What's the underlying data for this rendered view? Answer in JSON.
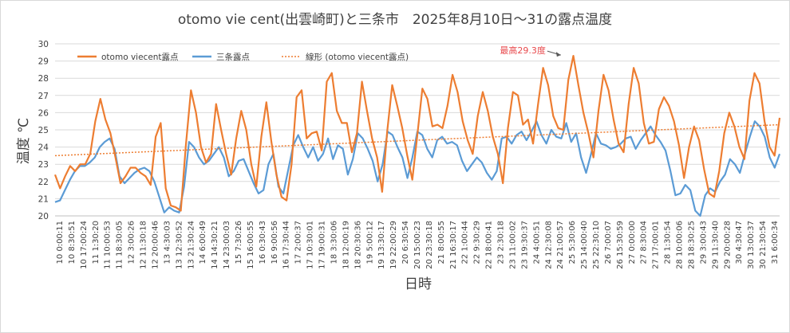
{
  "chart_data": {
    "type": "line",
    "title": "otomo vie cent(出雲崎町)と三条市　2025年8月10日～31の露点温度",
    "xlabel": "日時",
    "ylabel": "温度 ℃",
    "ylim": [
      20,
      30
    ],
    "yticks": [
      20,
      21,
      22,
      23,
      24,
      25,
      26,
      27,
      28,
      29,
      30
    ],
    "grid": true,
    "legend_position": "top-left",
    "colors": {
      "otomo": "#ed7d31",
      "sanjo": "#5b9bd5",
      "trend": "#ed7d31"
    },
    "x_tick_labels": [
      "10 0:00:11",
      "10 8:30:51",
      "10 17:00:24",
      "11 1:30:20",
      "11 10:00:53",
      "11 18:30:05",
      "12 3:00:26",
      "12 11:30:18",
      "12 20:00:46",
      "13 4:30:03",
      "13 12:30:52",
      "13 21:30:24",
      "14 6:00:49",
      "14 14:30:21",
      "14 23:00:03",
      "15 7:30:26",
      "15 16:00:55",
      "16 0:30:43",
      "16 9:00:56",
      "16 17:30:44",
      "17 2:00:37",
      "17 10:30:01",
      "17 19:00:31",
      "18 3:30:06",
      "18 12:00:19",
      "18 20:30:36",
      "19 5:00:12",
      "19 13:30:17",
      "19 22:00:29",
      "20 6:30:54",
      "20 15:00:23",
      "20 23:30:18",
      "21 8:00:55",
      "21 16:30:17",
      "22 1:00:44",
      "22 9:30:29",
      "22 18:00:41",
      "23 2:30:18",
      "23 11:00:02",
      "23 19:30:37",
      "24 4:00:51",
      "24 12:30:08",
      "24 21:00:57",
      "25 5:30:06",
      "25 14:00:40",
      "25 22:30:10",
      "26 7:00:07",
      "26 15:30:59",
      "27 0:00:00",
      "27 8:30:04",
      "27 17:00:01",
      "28 1:30:54",
      "28 10:00:06",
      "28 18:30:25",
      "29 3:00:43",
      "29 11:30:40",
      "29 20:00:28",
      "30 4:30:47",
      "30 13:00:37",
      "30 21:30:54",
      "31 6:00:34"
    ],
    "series": [
      {
        "name": "otomo viecent露点",
        "values": [
          22.4,
          21.6,
          22.3,
          22.9,
          22.6,
          23.0,
          23.0,
          23.6,
          25.5,
          26.8,
          25.6,
          24.8,
          23.4,
          21.9,
          22.3,
          22.8,
          22.8,
          22.5,
          22.3,
          21.8,
          24.6,
          25.4,
          21.6,
          20.6,
          20.5,
          20.3,
          24.1,
          27.3,
          26.0,
          24.0,
          23.1,
          23.6,
          26.5,
          25.0,
          23.6,
          22.4,
          24.5,
          26.1,
          25.0,
          23.0,
          21.7,
          24.6,
          26.6,
          24.3,
          22.4,
          21.1,
          20.9,
          23.0,
          26.9,
          27.3,
          24.5,
          24.8,
          24.9,
          23.8,
          27.8,
          28.3,
          26.1,
          25.4,
          25.4,
          23.7,
          24.8,
          27.8,
          26.1,
          24.5,
          23.4,
          21.4,
          24.9,
          27.6,
          26.4,
          25.1,
          23.5,
          22.1,
          24.7,
          27.4,
          26.8,
          25.2,
          25.3,
          25.1,
          26.4,
          28.2,
          27.2,
          25.5,
          24.4,
          23.6,
          25.8,
          27.2,
          26.1,
          24.6,
          23.6,
          21.9,
          25.1,
          27.2,
          27.0,
          25.3,
          25.6,
          24.2,
          26.5,
          28.6,
          27.6,
          25.8,
          25.1,
          25.0,
          27.9,
          29.3,
          27.6,
          26.0,
          24.8,
          23.4,
          26.1,
          28.2,
          27.3,
          25.6,
          24.2,
          23.7,
          26.5,
          28.6,
          27.7,
          25.4,
          24.2,
          24.3,
          26.2,
          26.9,
          26.4,
          25.5,
          24.1,
          22.2,
          24.0,
          25.2,
          24.4,
          22.7,
          21.3,
          21.1,
          22.6,
          24.8,
          26.0,
          25.2,
          24.0,
          23.3,
          26.7,
          28.3,
          27.7,
          25.5,
          24.0,
          23.5,
          25.7
        ]
      },
      {
        "name": "三条露点",
        "values": [
          20.8,
          20.9,
          21.5,
          22.1,
          22.6,
          22.9,
          22.9,
          23.1,
          23.4,
          24.0,
          24.3,
          24.5,
          23.9,
          22.3,
          21.9,
          22.2,
          22.5,
          22.7,
          22.8,
          22.6,
          22.0,
          21.1,
          20.2,
          20.5,
          20.3,
          20.2,
          21.7,
          24.3,
          24.0,
          23.4,
          23.0,
          23.2,
          23.6,
          24.0,
          23.4,
          22.3,
          22.6,
          23.2,
          23.3,
          22.6,
          21.9,
          21.3,
          21.5,
          23.0,
          23.6,
          21.7,
          21.3,
          22.7,
          24.1,
          24.7,
          24.0,
          23.4,
          24.0,
          23.2,
          23.6,
          24.5,
          23.3,
          24.1,
          23.9,
          22.4,
          23.3,
          24.8,
          24.5,
          23.9,
          23.2,
          22.0,
          23.0,
          24.9,
          24.7,
          24.0,
          23.4,
          22.2,
          23.4,
          24.9,
          24.7,
          23.9,
          23.4,
          24.4,
          24.6,
          24.2,
          24.3,
          24.1,
          23.2,
          22.6,
          23.0,
          23.4,
          23.1,
          22.5,
          22.1,
          22.6,
          24.5,
          24.6,
          24.2,
          24.7,
          24.9,
          24.4,
          24.9,
          25.5,
          24.7,
          24.2,
          25.0,
          24.6,
          24.5,
          25.4,
          24.3,
          24.8,
          23.4,
          22.5,
          23.6,
          24.8,
          24.2,
          24.1,
          23.9,
          24.0,
          24.2,
          24.5,
          24.6,
          23.9,
          24.4,
          24.8,
          25.2,
          24.7,
          24.3,
          23.8,
          22.6,
          21.2,
          21.3,
          21.8,
          21.5,
          20.3,
          20.0,
          21.2,
          21.6,
          21.4,
          22.0,
          22.4,
          23.3,
          23.0,
          22.5,
          23.6,
          24.6,
          25.5,
          25.2,
          24.6,
          23.4,
          22.8,
          23.6
        ]
      },
      {
        "name": "線形 (otomo viecent露点)",
        "type": "trendline",
        "values": [
          23.5,
          25.3
        ]
      }
    ],
    "annotations": [
      {
        "text": "最高29.3度",
        "x_index": 101,
        "y": 29.3
      }
    ]
  }
}
